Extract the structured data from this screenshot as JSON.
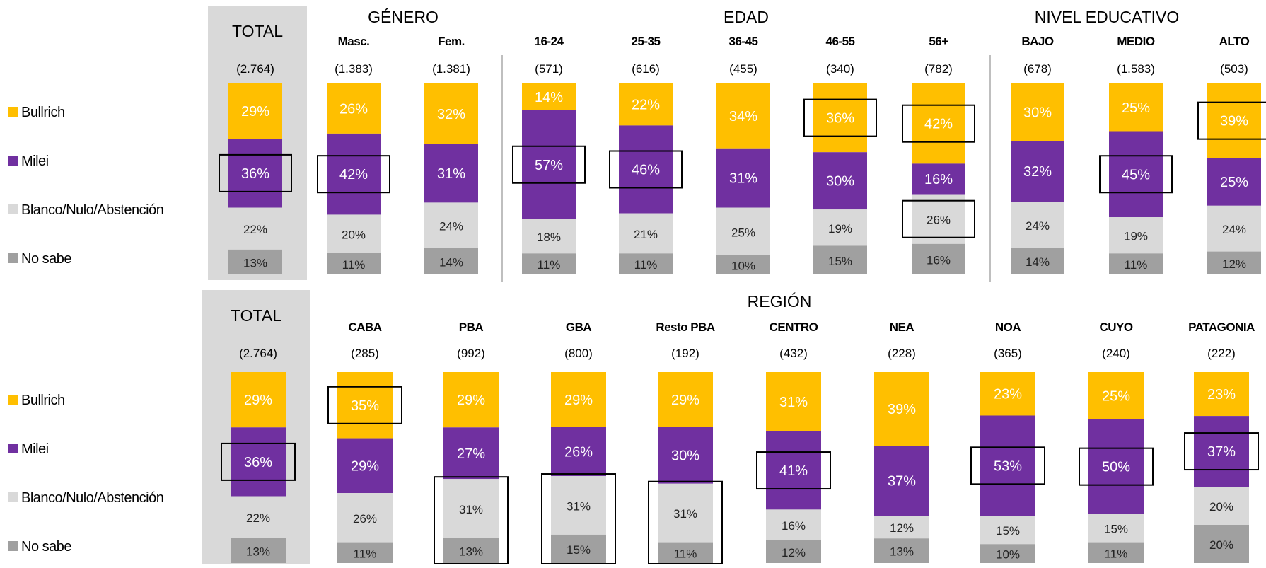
{
  "legend": [
    {
      "label": "Bullrich",
      "color": "#FFBF00"
    },
    {
      "label": "Milei",
      "color": "#7030A0"
    },
    {
      "label": "Blanco/Nulo/Abstención",
      "color": "#D9D9D9"
    },
    {
      "label": "No sabe",
      "color": "#A0A0A0"
    }
  ],
  "chart_data": [
    {
      "type": "bar",
      "stacked": "100%",
      "series_names": [
        "Bullrich",
        "Milei",
        "Blanco/Nulo/Abstención",
        "No sabe"
      ],
      "colors": [
        "#FFBF00",
        "#7030A0",
        "#D9D9D9",
        "#A0A0A0"
      ],
      "group_labels": [
        "TOTAL",
        "GÉNERO",
        "EDAD",
        "NIVEL EDUCATIVO"
      ],
      "categories": [
        "TOTAL",
        "Masc.",
        "Fem.",
        "16-24",
        "25-35",
        "36-45",
        "46-55",
        "56+",
        "BAJO",
        "MEDIO",
        "ALTO"
      ],
      "sample_sizes": [
        "(2.764)",
        "(1.383)",
        "(1.381)",
        "(571)",
        "(616)",
        "(455)",
        "(340)",
        "(782)",
        "(678)",
        "(1.583)",
        "(503)"
      ],
      "values": [
        [
          29,
          36,
          22,
          13
        ],
        [
          26,
          42,
          20,
          11
        ],
        [
          32,
          31,
          24,
          14
        ],
        [
          14,
          57,
          18,
          11
        ],
        [
          22,
          46,
          21,
          11
        ],
        [
          34,
          31,
          25,
          10
        ],
        [
          36,
          30,
          19,
          15
        ],
        [
          42,
          16,
          26,
          16
        ],
        [
          30,
          32,
          24,
          14
        ],
        [
          25,
          45,
          19,
          11
        ],
        [
          39,
          25,
          24,
          12
        ]
      ],
      "highlights": [
        {
          "category": "TOTAL",
          "series": "Milei"
        },
        {
          "category": "Masc.",
          "series": "Milei"
        },
        {
          "category": "16-24",
          "series": "Milei"
        },
        {
          "category": "25-35",
          "series": "Milei"
        },
        {
          "category": "46-55",
          "series": "Bullrich"
        },
        {
          "category": "56+",
          "series": "Bullrich"
        },
        {
          "category": "56+",
          "series": "Blanco/Nulo/Abstención"
        },
        {
          "category": "MEDIO",
          "series": "Milei"
        },
        {
          "category": "ALTO",
          "series": "Bullrich"
        }
      ]
    },
    {
      "type": "bar",
      "stacked": "100%",
      "series_names": [
        "Bullrich",
        "Milei",
        "Blanco/Nulo/Abstención",
        "No sabe"
      ],
      "colors": [
        "#FFBF00",
        "#7030A0",
        "#D9D9D9",
        "#A0A0A0"
      ],
      "group_labels": [
        "TOTAL",
        "REGIÓN"
      ],
      "categories": [
        "TOTAL",
        "CABA",
        "PBA",
        "GBA",
        "Resto PBA",
        "CENTRO",
        "NEA",
        "NOA",
        "CUYO",
        "PATAGONIA"
      ],
      "sample_sizes": [
        "(2.764)",
        "(285)",
        "(992)",
        "(800)",
        "(192)",
        "(432)",
        "(228)",
        "(365)",
        "(240)",
        "(222)"
      ],
      "values": [
        [
          29,
          36,
          22,
          13
        ],
        [
          35,
          29,
          26,
          11
        ],
        [
          29,
          27,
          31,
          13
        ],
        [
          29,
          26,
          31,
          15
        ],
        [
          29,
          30,
          31,
          11
        ],
        [
          31,
          41,
          16,
          12
        ],
        [
          39,
          37,
          12,
          13
        ],
        [
          23,
          53,
          15,
          10
        ],
        [
          25,
          50,
          15,
          11
        ],
        [
          23,
          37,
          20,
          20
        ]
      ],
      "highlights": [
        {
          "category": "TOTAL",
          "series": "Milei"
        },
        {
          "category": "CABA",
          "series": "Bullrich"
        },
        {
          "category": "PBA",
          "series": "Blanco/Nulo/Abstención+No sabe"
        },
        {
          "category": "GBA",
          "series": "Blanco/Nulo/Abstención+No sabe"
        },
        {
          "category": "Resto PBA",
          "series": "Blanco/Nulo/Abstención+No sabe"
        },
        {
          "category": "CENTRO",
          "series": "Milei"
        },
        {
          "category": "NOA",
          "series": "Milei"
        },
        {
          "category": "CUYO",
          "series": "Milei"
        },
        {
          "category": "PATAGONIA",
          "series": "Milei"
        }
      ]
    }
  ]
}
